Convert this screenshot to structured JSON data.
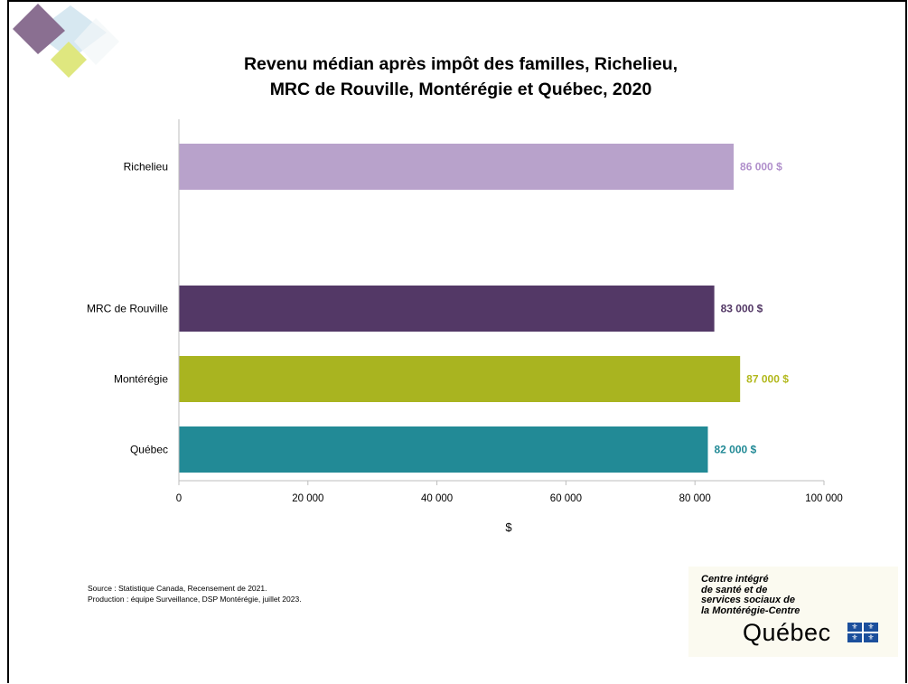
{
  "title_lines": [
    "Revenu médian après impôt des familles, Richelieu,",
    "MRC de Rouville, Montérégie et Québec, 2020"
  ],
  "chart_data": {
    "type": "bar",
    "orientation": "horizontal",
    "categories": [
      "Richelieu",
      "MRC de Rouville",
      "Montérégie",
      "Québec"
    ],
    "values": [
      86000,
      83000,
      87000,
      82000
    ],
    "data_labels": [
      "86 000 $",
      "83 000 $",
      "87 000 $",
      "82 000 $"
    ],
    "colors": [
      "#b8a2cb",
      "#533866",
      "#a9b420",
      "#228a96"
    ],
    "label_colors": [
      "#b08fcb",
      "#533866",
      "#b2b81c",
      "#228a96"
    ],
    "xlabel": "$",
    "xlim": [
      0,
      100000
    ],
    "xticks": [
      0,
      20000,
      40000,
      60000,
      80000,
      100000
    ],
    "xtick_labels": [
      "0",
      "20 000",
      "40 000",
      "60 000",
      "80 000",
      "100 000"
    ],
    "grid": false,
    "legend": "none"
  },
  "footer": {
    "source": "Source : Statistique Canada, Recensement de 2021.",
    "production": "Production : équipe Surveillance, DSP Montérégie, juillet 2023."
  },
  "logo": {
    "lines": [
      "Centre intégré",
      "de santé et de",
      "services sociaux de",
      "la Montérégie-Centre"
    ],
    "wordmark": "Québec"
  },
  "decor_colors": [
    "#8a6f91",
    "#d3e6ef",
    "#dfe77f"
  ]
}
